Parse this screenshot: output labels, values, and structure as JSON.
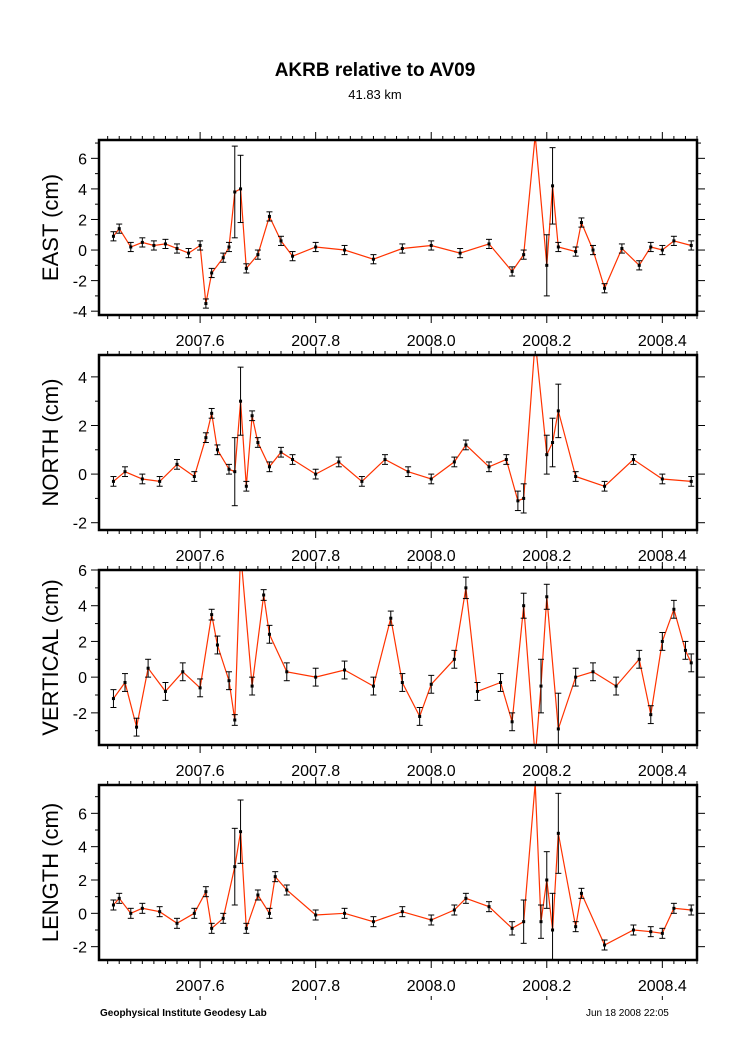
{
  "header": {
    "title": "AKRB relative to AV09",
    "subtitle": "41.83 km"
  },
  "footer": {
    "left": "Geophysical Institute Geodesy Lab",
    "right": "Jun 18 2008 22:05"
  },
  "colors": {
    "series_line": "#ff3300",
    "points": "#000000",
    "frame": "#000000"
  },
  "chart_data": [
    {
      "type": "scatter",
      "title": "EAST",
      "ylabel": "EAST (cm)",
      "xlabel": "",
      "xlim": [
        2007.425,
        2008.46
      ],
      "ylim": [
        -4.25,
        7.2
      ],
      "xticks": [
        "2007.6",
        "2007.8",
        "2008.0",
        "2008.2",
        "2008.4"
      ],
      "yticks": [
        "-4",
        "-2",
        "0",
        "2",
        "4",
        "6"
      ],
      "grid": false,
      "series": [
        {
          "name": "EAST",
          "x": [
            2007.45,
            2007.46,
            2007.48,
            2007.5,
            2007.52,
            2007.54,
            2007.56,
            2007.58,
            2007.6,
            2007.61,
            2007.62,
            2007.64,
            2007.65,
            2007.66,
            2007.67,
            2007.68,
            2007.7,
            2007.72,
            2007.74,
            2007.76,
            2007.8,
            2007.85,
            2007.9,
            2007.95,
            2008.0,
            2008.05,
            2008.1,
            2008.14,
            2008.16,
            2008.18,
            2008.2,
            2008.21,
            2008.22,
            2008.25,
            2008.26,
            2008.28,
            2008.3,
            2008.33,
            2008.36,
            2008.38,
            2008.4,
            2008.42,
            2008.45
          ],
          "y": [
            0.9,
            1.4,
            0.2,
            0.5,
            0.3,
            0.4,
            0.1,
            -0.2,
            0.3,
            -3.5,
            -1.5,
            -0.5,
            0.2,
            3.8,
            4.0,
            -1.2,
            -0.3,
            2.2,
            0.6,
            -0.4,
            0.2,
            0.0,
            -0.6,
            0.1,
            0.3,
            -0.2,
            0.4,
            -1.4,
            -0.3,
            7.5,
            -1.0,
            4.2,
            0.2,
            -0.1,
            1.8,
            0.0,
            -2.5,
            0.1,
            -1.0,
            0.2,
            0.0,
            0.6,
            0.3
          ],
          "err": [
            0.3,
            0.3,
            0.3,
            0.3,
            0.3,
            0.3,
            0.3,
            0.3,
            0.3,
            0.3,
            0.3,
            0.3,
            0.3,
            3.0,
            2.2,
            0.3,
            0.3,
            0.3,
            0.3,
            0.3,
            0.3,
            0.3,
            0.3,
            0.3,
            0.3,
            0.3,
            0.3,
            0.3,
            0.3,
            0.3,
            2.0,
            2.5,
            0.3,
            0.3,
            0.3,
            0.3,
            0.3,
            0.3,
            0.3,
            0.3,
            0.3,
            0.3,
            0.3
          ]
        }
      ]
    },
    {
      "type": "scatter",
      "title": "NORTH",
      "ylabel": "NORTH (cm)",
      "xlabel": "",
      "xlim": [
        2007.425,
        2008.46
      ],
      "ylim": [
        -2.3,
        4.9
      ],
      "xticks": [
        "2007.6",
        "2007.8",
        "2008.0",
        "2008.2",
        "2008.4"
      ],
      "yticks": [
        "-2",
        "0",
        "2",
        "4"
      ],
      "grid": false,
      "series": [
        {
          "name": "NORTH",
          "x": [
            2007.45,
            2007.47,
            2007.5,
            2007.53,
            2007.56,
            2007.59,
            2007.61,
            2007.62,
            2007.63,
            2007.65,
            2007.66,
            2007.67,
            2007.68,
            2007.69,
            2007.7,
            2007.72,
            2007.74,
            2007.76,
            2007.8,
            2007.84,
            2007.88,
            2007.92,
            2007.96,
            2008.0,
            2008.04,
            2008.06,
            2008.1,
            2008.13,
            2008.15,
            2008.16,
            2008.18,
            2008.2,
            2008.21,
            2008.22,
            2008.25,
            2008.3,
            2008.35,
            2008.4,
            2008.45
          ],
          "y": [
            -0.3,
            0.1,
            -0.2,
            -0.3,
            0.4,
            -0.1,
            1.5,
            2.5,
            1.0,
            0.2,
            0.1,
            3.0,
            -0.5,
            2.4,
            1.3,
            0.3,
            0.9,
            0.6,
            0.0,
            0.5,
            -0.3,
            0.6,
            0.1,
            -0.2,
            0.5,
            1.2,
            0.3,
            0.6,
            -1.1,
            -1.0,
            5.5,
            0.8,
            1.3,
            2.6,
            -0.1,
            -0.5,
            0.6,
            -0.2,
            -0.3
          ],
          "err": [
            0.2,
            0.2,
            0.2,
            0.2,
            0.2,
            0.2,
            0.2,
            0.2,
            0.2,
            0.2,
            1.4,
            1.4,
            0.2,
            0.2,
            0.2,
            0.2,
            0.2,
            0.2,
            0.2,
            0.2,
            0.2,
            0.2,
            0.2,
            0.2,
            0.2,
            0.2,
            0.2,
            0.2,
            0.4,
            0.6,
            0.2,
            0.8,
            1.0,
            1.1,
            0.2,
            0.2,
            0.2,
            0.2,
            0.2
          ]
        }
      ]
    },
    {
      "type": "scatter",
      "title": "VERTICAL",
      "ylabel": "VERTICAL (cm)",
      "xlabel": "",
      "xlim": [
        2007.425,
        2008.46
      ],
      "ylim": [
        -3.8,
        6.0
      ],
      "xticks": [
        "2007.6",
        "2007.8",
        "2008.0",
        "2008.2",
        "2008.4"
      ],
      "yticks": [
        "-2",
        "0",
        "2",
        "4",
        "6"
      ],
      "grid": false,
      "series": [
        {
          "name": "VERTICAL",
          "x": [
            2007.45,
            2007.47,
            2007.49,
            2007.51,
            2007.54,
            2007.57,
            2007.6,
            2007.62,
            2007.63,
            2007.65,
            2007.66,
            2007.67,
            2007.69,
            2007.71,
            2007.72,
            2007.75,
            2007.8,
            2007.85,
            2007.9,
            2007.93,
            2007.95,
            2007.98,
            2008.0,
            2008.04,
            2008.06,
            2008.08,
            2008.12,
            2008.14,
            2008.16,
            2008.18,
            2008.19,
            2008.2,
            2008.22,
            2008.25,
            2008.28,
            2008.32,
            2008.36,
            2008.38,
            2008.4,
            2008.42,
            2008.44,
            2008.45
          ],
          "y": [
            -1.2,
            -0.3,
            -2.8,
            0.5,
            -0.8,
            0.3,
            -0.6,
            3.5,
            1.8,
            -0.2,
            -2.4,
            7.0,
            -0.5,
            4.6,
            2.4,
            0.3,
            0.0,
            0.4,
            -0.5,
            3.3,
            -0.3,
            -2.2,
            -0.4,
            1.0,
            5.0,
            -0.8,
            -0.3,
            -2.5,
            4.0,
            -4.5,
            -0.5,
            4.5,
            -2.9,
            0.0,
            0.3,
            -0.5,
            1.0,
            -2.1,
            2.0,
            3.8,
            1.5,
            0.8
          ],
          "err": [
            0.5,
            0.5,
            0.5,
            0.5,
            0.5,
            0.5,
            0.5,
            0.3,
            0.5,
            0.5,
            0.3,
            0.5,
            0.5,
            0.3,
            0.5,
            0.5,
            0.5,
            0.5,
            0.5,
            0.4,
            0.5,
            0.5,
            0.5,
            0.5,
            0.6,
            0.5,
            0.5,
            0.5,
            0.7,
            0.5,
            1.5,
            0.7,
            2.0,
            0.5,
            0.5,
            0.5,
            0.5,
            0.5,
            0.5,
            0.5,
            0.5,
            0.5
          ]
        }
      ]
    },
    {
      "type": "scatter",
      "title": "LENGTH",
      "ylabel": "LENGTH (cm)",
      "xlabel": "",
      "xlim": [
        2007.425,
        2008.46
      ],
      "ylim": [
        -2.8,
        7.7
      ],
      "xticks": [
        "2007.6",
        "2007.8",
        "2008.0",
        "2008.2",
        "2008.4"
      ],
      "yticks": [
        "-2",
        "0",
        "2",
        "4",
        "6"
      ],
      "grid": false,
      "series": [
        {
          "name": "LENGTH",
          "x": [
            2007.45,
            2007.46,
            2007.48,
            2007.5,
            2007.53,
            2007.56,
            2007.59,
            2007.61,
            2007.62,
            2007.64,
            2007.66,
            2007.67,
            2007.68,
            2007.7,
            2007.72,
            2007.73,
            2007.75,
            2007.8,
            2007.85,
            2007.9,
            2007.95,
            2008.0,
            2008.04,
            2008.06,
            2008.1,
            2008.14,
            2008.16,
            2008.18,
            2008.19,
            2008.2,
            2008.21,
            2008.22,
            2008.25,
            2008.26,
            2008.3,
            2008.35,
            2008.38,
            2008.4,
            2008.42,
            2008.45
          ],
          "y": [
            0.5,
            0.9,
            0.0,
            0.3,
            0.1,
            -0.6,
            0.0,
            1.3,
            -0.9,
            -0.3,
            2.8,
            4.9,
            -0.9,
            1.1,
            0.0,
            2.2,
            1.4,
            -0.1,
            0.0,
            -0.5,
            0.1,
            -0.4,
            0.2,
            0.9,
            0.4,
            -0.9,
            -0.5,
            7.8,
            -0.5,
            2.0,
            -1.0,
            4.8,
            -0.8,
            1.2,
            -1.9,
            -1.0,
            -1.1,
            -1.2,
            0.3,
            0.2
          ],
          "err": [
            0.3,
            0.3,
            0.3,
            0.3,
            0.3,
            0.3,
            0.3,
            0.3,
            0.3,
            0.3,
            2.3,
            1.9,
            0.3,
            0.3,
            0.3,
            0.3,
            0.3,
            0.3,
            0.3,
            0.3,
            0.3,
            0.3,
            0.3,
            0.3,
            0.3,
            0.4,
            1.3,
            0.3,
            1.0,
            1.7,
            2.2,
            2.4,
            0.3,
            0.3,
            0.3,
            0.3,
            0.3,
            0.3,
            0.3,
            0.3
          ]
        }
      ]
    }
  ]
}
